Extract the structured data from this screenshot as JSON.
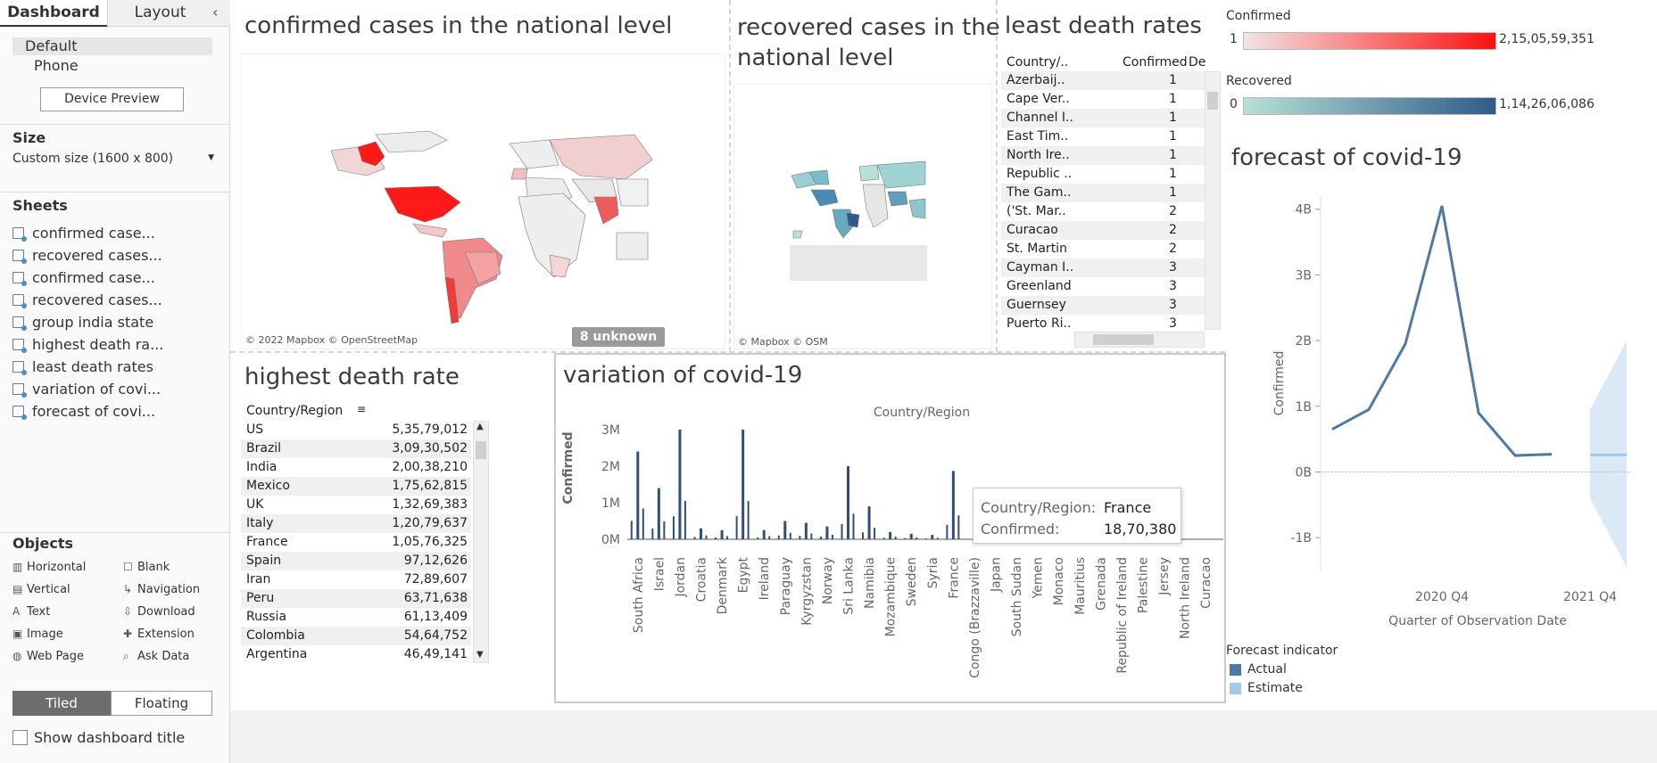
{
  "side": {
    "tabs": [
      "Dashboard",
      "Layout"
    ],
    "collapse_icon": "chevron-left-icon",
    "devices": [
      "Default",
      "Phone"
    ],
    "device_preview": "Device Preview",
    "size_heading": "Size",
    "size_value": "Custom size (1600 x 800)",
    "sheets_heading": "Sheets",
    "sheets": [
      "confirmed case...",
      "recovered cases...",
      "confirmed case...",
      "recovered cases...",
      "group india state",
      "highest death ra...",
      "least death rates",
      "variation of covi...",
      "forecast of covi..."
    ],
    "objects_heading": "Objects",
    "objects": [
      {
        "label": "Horizontal",
        "icon": "horizontal-icon"
      },
      {
        "label": "Blank",
        "icon": "blank-icon"
      },
      {
        "label": "Vertical",
        "icon": "vertical-icon"
      },
      {
        "label": "Navigation",
        "icon": "navigation-icon"
      },
      {
        "label": "Text",
        "icon": "text-icon"
      },
      {
        "label": "Download",
        "icon": "download-icon"
      },
      {
        "label": "Image",
        "icon": "image-icon"
      },
      {
        "label": "Extension",
        "icon": "extension-icon"
      },
      {
        "label": "Web Page",
        "icon": "web-page-icon"
      },
      {
        "label": "Ask Data",
        "icon": "ask-data-icon"
      }
    ],
    "tiled": "Tiled",
    "floating": "Floating",
    "show_title": "Show dashboard title"
  },
  "map1": {
    "title": "confirmed cases in the national level",
    "attribution": "© 2022 Mapbox © OpenStreetMap",
    "unknown": "8 unknown"
  },
  "map2": {
    "title_l1": "recovered cases in the",
    "title_l2": "national level",
    "attribution": "© Mapbox © OSM"
  },
  "least": {
    "title": "least death rates",
    "headers": [
      "Country/..",
      "Confirmed",
      "De"
    ],
    "rows": [
      [
        "Azerbaij..",
        "1"
      ],
      [
        "Cape Ver..",
        "1"
      ],
      [
        "Channel I..",
        "1"
      ],
      [
        "East Tim..",
        "1"
      ],
      [
        "North Ire..",
        "1"
      ],
      [
        "Republic ..",
        "1"
      ],
      [
        "The Gam..",
        "1"
      ],
      [
        "('St. Mar..",
        "2"
      ],
      [
        "Curacao",
        "2"
      ],
      [
        "St. Martin",
        "2"
      ],
      [
        "Cayman I..",
        "3"
      ],
      [
        "Greenland",
        "3"
      ],
      [
        "Guernsey",
        "3"
      ],
      [
        "Puerto Ri..",
        "3"
      ]
    ]
  },
  "legend": {
    "confirmed_label": "Confirmed",
    "confirmed_min": "1",
    "confirmed_max": "2,15,05,59,351",
    "recovered_label": "Recovered",
    "recovered_min": "0",
    "recovered_max": "1,14,26,06,086",
    "confirmed_colors": [
      "#f2e4e4",
      "#ff1010"
    ],
    "recovered_colors": [
      "#b7e0d6",
      "#2f5c8a"
    ]
  },
  "highest": {
    "title": "highest death rate",
    "header": "Country/Region",
    "rows": [
      [
        "US",
        "5,35,79,012"
      ],
      [
        "Brazil",
        "3,09,30,502"
      ],
      [
        "India",
        "2,00,38,210"
      ],
      [
        "Mexico",
        "1,75,62,815"
      ],
      [
        "UK",
        "1,32,69,383"
      ],
      [
        "Italy",
        "1,20,79,637"
      ],
      [
        "France",
        "1,05,76,325"
      ],
      [
        "Spain",
        "97,12,626"
      ],
      [
        "Iran",
        "72,89,607"
      ],
      [
        "Peru",
        "63,71,638"
      ],
      [
        "Russia",
        "61,13,409"
      ],
      [
        "Colombia",
        "54,64,752"
      ],
      [
        "Argentina",
        "46,49,141"
      ]
    ]
  },
  "variation": {
    "title": "variation of covid-19",
    "tooltip": {
      "k1": "Country/Region:",
      "v1": "France",
      "k2": "Confirmed:",
      "v2": "18,70,380"
    }
  },
  "forecast": {
    "title": "forecast of covid-19",
    "legend_title": "Forecast indicator",
    "legend_items": [
      "Actual",
      "Estimate"
    ],
    "legend_colors": [
      "#4e79a7",
      "#a0cbe8"
    ]
  },
  "chart_data": [
    {
      "type": "bar",
      "title": "variation of covid-19",
      "xlabel": "Country/Region",
      "ylabel": "Confirmed",
      "ylim": [
        0,
        3000000
      ],
      "yticks": [
        "0M",
        "1M",
        "2M",
        "3M"
      ],
      "categories": [
        "South Africa",
        "Israel",
        "Jordan",
        "Croatia",
        "Denmark",
        "Egypt",
        "Ireland",
        "Paraguay",
        "Kyrgyzstan",
        "Norway",
        "Sri Lanka",
        "Namibia",
        "Mozambique",
        "Sweden",
        "Syria",
        "France",
        "Congo (Brazzaville)",
        "Japan",
        "South Sudan",
        "Yemen",
        "Monaco",
        "Mauritius",
        "Grenada",
        "Republic of Ireland",
        "Palestine",
        "Jersey",
        "North Ireland",
        "Curacao"
      ],
      "values": [
        2400000,
        1400000,
        3000000,
        300000,
        250000,
        3000000,
        250000,
        500000,
        450000,
        350000,
        2000000,
        900000,
        200000,
        150000,
        120000,
        1870380,
        30000,
        20000,
        15000,
        10000,
        8000,
        6000,
        4000,
        3000,
        2000,
        1500,
        1000,
        500
      ]
    },
    {
      "type": "line",
      "title": "forecast of covid-19",
      "xlabel": "Quarter of Observation Date",
      "ylabel": "Confirmed",
      "ylim": [
        -1500000000,
        4200000000
      ],
      "yticks": [
        "-1B",
        "0B",
        "1B",
        "2B",
        "3B",
        "4B"
      ],
      "xticks": [
        "2020 Q4",
        "2021 Q4"
      ],
      "series": [
        {
          "name": "Actual",
          "x": [
            "2020 Q1",
            "2020 Q2",
            "2020 Q3",
            "2020 Q4",
            "2021 Q1",
            "2021 Q2",
            "2021 Q3"
          ],
          "values": [
            650000000,
            950000000,
            1950000000,
            4050000000,
            900000000,
            250000000,
            270000000
          ]
        },
        {
          "name": "Estimate",
          "x": [
            "2021 Q4",
            "2022 Q1"
          ],
          "values": [
            260000000,
            260000000
          ],
          "band_low": [
            -400000000,
            -1450000000
          ],
          "band_high": [
            950000000,
            2000000000
          ]
        }
      ]
    }
  ]
}
